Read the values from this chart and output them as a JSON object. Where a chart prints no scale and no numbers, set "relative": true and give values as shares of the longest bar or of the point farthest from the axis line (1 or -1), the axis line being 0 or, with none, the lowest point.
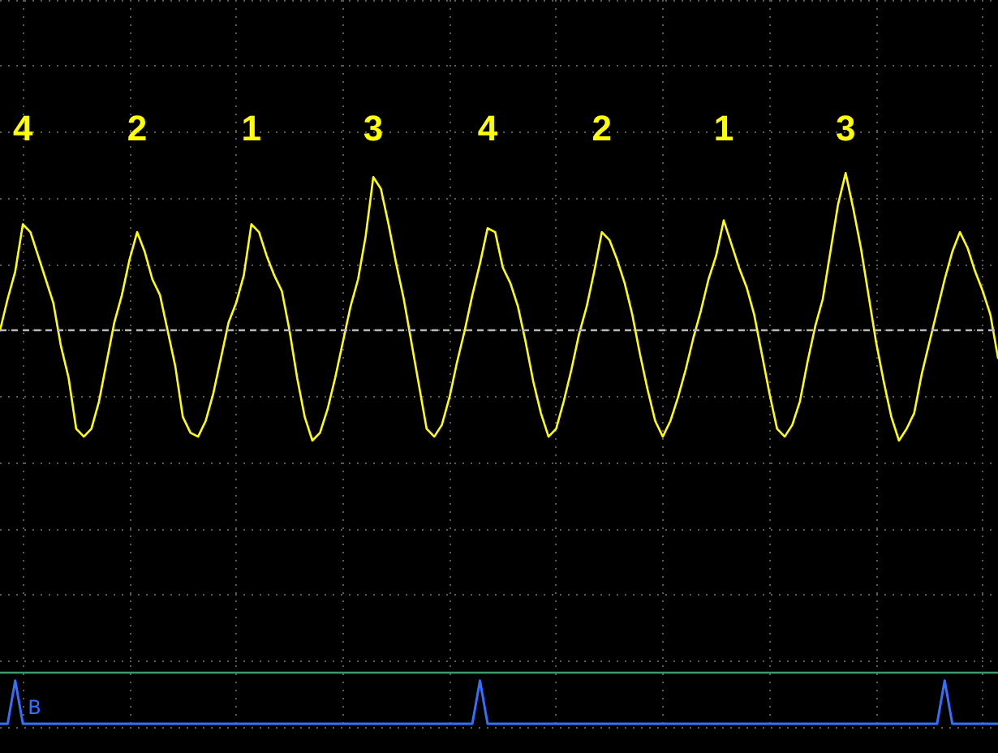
{
  "chart_data": {
    "type": "line",
    "relative": true,
    "categories": [
      null,
      null,
      null,
      null,
      null,
      null,
      null,
      null,
      null,
      null,
      null,
      null,
      null,
      null,
      null,
      null,
      null,
      null,
      null,
      null,
      null,
      null,
      null,
      null,
      null,
      null,
      null,
      null,
      null,
      null,
      null,
      null,
      null,
      null,
      null,
      null,
      null,
      null,
      null,
      null,
      null,
      null,
      null,
      null,
      null,
      null,
      null,
      null,
      null,
      null,
      null,
      null,
      null,
      null,
      null,
      null,
      null,
      null,
      null,
      null,
      null,
      null,
      null,
      null,
      null,
      null,
      null,
      null,
      null,
      null,
      null,
      null,
      null,
      null,
      null,
      null,
      null,
      null,
      null,
      null,
      null,
      null,
      null,
      null,
      null,
      null,
      null,
      null,
      null,
      null,
      null,
      null,
      null,
      null,
      null,
      null,
      null,
      null,
      null,
      null,
      null,
      null,
      null,
      null,
      null,
      null,
      null,
      null,
      null,
      null,
      null,
      null,
      null,
      null,
      null,
      null,
      null,
      null,
      null,
      null,
      null,
      null,
      null,
      null,
      null,
      null,
      null,
      null,
      null,
      null,
      null,
      null
    ],
    "series": [
      {
        "color": "#ffff00",
        "values": [
          0,
          0.08,
          0.15,
          0.27,
          0.25,
          0.19,
          0.13,
          0.07,
          -0.04,
          -0.12,
          -0.25,
          -0.27,
          -0.25,
          -0.18,
          -0.08,
          0.02,
          0.09,
          0.18,
          0.25,
          0.2,
          0.13,
          0.09,
          0,
          -0.09,
          -0.22,
          -0.26,
          -0.27,
          -0.23,
          -0.16,
          -0.07,
          0.02,
          0.07,
          0.14,
          0.27,
          0.25,
          0.19,
          0.14,
          0.1,
          0,
          -0.12,
          -0.22,
          -0.28,
          -0.26,
          -0.2,
          -0.12,
          -0.03,
          0.06,
          0.13,
          0.24,
          0.39,
          0.36,
          0.27,
          0.17,
          0.08,
          -0.03,
          -0.14,
          -0.25,
          -0.27,
          -0.24,
          -0.17,
          -0.08,
          0,
          0.09,
          0.17,
          0.26,
          0.25,
          0.16,
          0.12,
          0.06,
          -0.03,
          -0.13,
          -0.21,
          -0.27,
          -0.25,
          -0.18,
          -0.1,
          -0.01,
          0.06,
          0.15,
          0.25,
          0.23,
          0.18,
          0.12,
          0.04,
          -0.06,
          -0.15,
          -0.23,
          -0.27,
          -0.23,
          -0.17,
          -0.1,
          -0.02,
          0.05,
          0.13,
          0.19,
          0.28,
          0.22,
          0.16,
          0.11,
          0.04,
          -0.06,
          -0.16,
          -0.25,
          -0.27,
          -0.24,
          -0.18,
          -0.08,
          0.01,
          0.08,
          0.2,
          0.32,
          0.4,
          0.31,
          0.21,
          0.09,
          -0.03,
          -0.13,
          -0.22,
          -0.28,
          -0.25,
          -0.21,
          -0.11,
          -0.03,
          0.05,
          0.13,
          0.2,
          0.25,
          0.21,
          0.15,
          0.1,
          0.04,
          -0.07
        ]
      },
      {
        "name": "B",
        "color": "#3370ff",
        "values": [
          -1,
          -1,
          -0.89,
          -1,
          -1,
          -1,
          -1,
          -1,
          -1,
          -1,
          -1,
          -1,
          -1,
          -1,
          -1,
          -1,
          -1,
          -1,
          -1,
          -1,
          -1,
          -1,
          -1,
          -1,
          -1,
          -1,
          -1,
          -1,
          -1,
          -1,
          -1,
          -1,
          -1,
          -1,
          -1,
          -1,
          -1,
          -1,
          -1,
          -1,
          -1,
          -1,
          -1,
          -1,
          -1,
          -1,
          -1,
          -1,
          -1,
          -1,
          -1,
          -1,
          -1,
          -1,
          -1,
          -1,
          -1,
          -1,
          -1,
          -1,
          -1,
          -1,
          -1,
          -0.89,
          -1,
          -1,
          -1,
          -1,
          -1,
          -1,
          -1,
          -1,
          -1,
          -1,
          -1,
          -1,
          -1,
          -1,
          -1,
          -1,
          -1,
          -1,
          -1,
          -1,
          -1,
          -1,
          -1,
          -1,
          -1,
          -1,
          -1,
          -1,
          -1,
          -1,
          -1,
          -1,
          -1,
          -1,
          -1,
          -1,
          -1,
          -1,
          -1,
          -1,
          -1,
          -1,
          -1,
          -1,
          -1,
          -1,
          -1,
          -1,
          -1,
          -1,
          -1,
          -1,
          -1,
          -1,
          -1,
          -1,
          -1,
          -1,
          -1,
          -1,
          -0.89,
          -1,
          -1,
          -1,
          -1,
          -1,
          -1,
          -1
        ]
      }
    ],
    "annotations": [
      "4",
      "2",
      "1",
      "3",
      "4",
      "2",
      "1",
      "3"
    ],
    "ref_lines": [
      {
        "axis": "y",
        "value": 0,
        "color": "#b8b8b8",
        "line_style": "dashed"
      },
      {
        "axis": "y",
        "value": -0.87,
        "color": "#3a9a6a"
      }
    ],
    "grid": true,
    "marker": "none"
  }
}
